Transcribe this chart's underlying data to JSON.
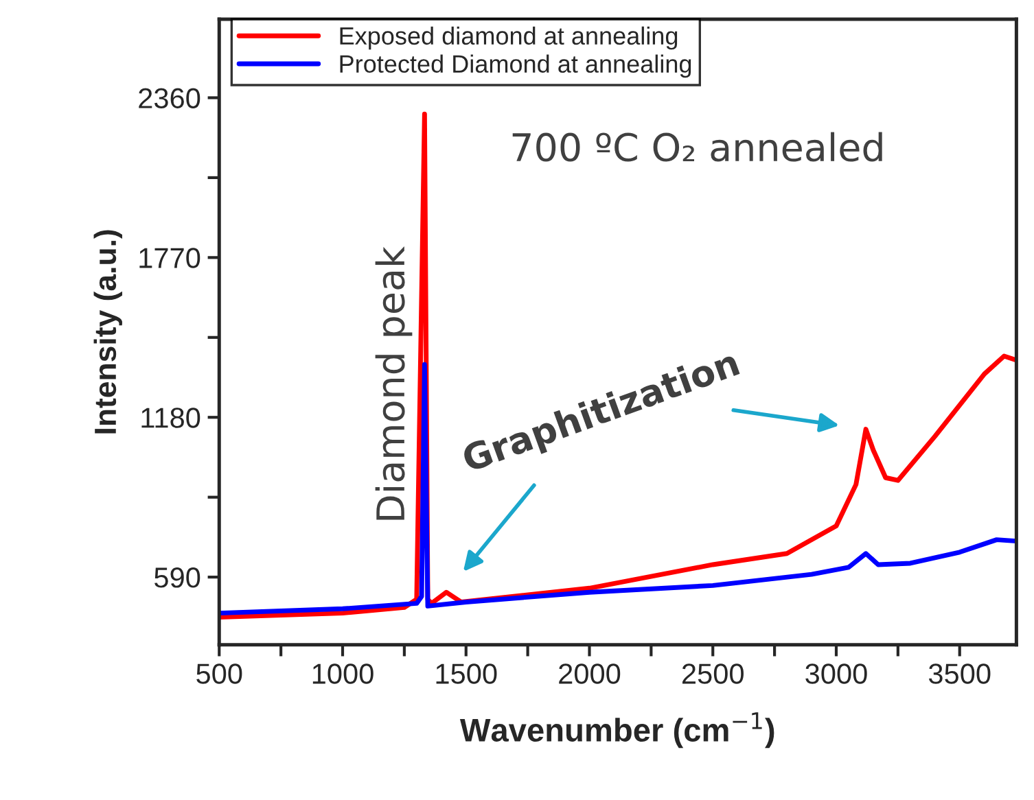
{
  "chart_data": {
    "type": "line",
    "xlabel": "Wavenumber (cm$^{−1}$)",
    "ylabel": "Intensity (a.u.)",
    "series": [
      {
        "name": "Exposed diamond at annealing",
        "color": "#ff0000",
        "x": [
          500,
          1000,
          1250,
          1300,
          1332,
          1345,
          1360,
          1420,
          1480,
          1500,
          2000,
          2500,
          2800,
          3000,
          3080,
          3120,
          3150,
          3200,
          3250,
          3400,
          3600,
          3680,
          3730
        ],
        "values": [
          442,
          457,
          478,
          508,
          2300,
          508,
          493,
          534,
          498,
          500,
          549,
          636,
          677,
          779,
          932,
          1136,
          1059,
          957,
          947,
          1110,
          1340,
          1406,
          1391
        ]
      },
      {
        "name": "Protected Diamond at annealing",
        "color": "#0000ff",
        "x": [
          500,
          1000,
          1300,
          1320,
          1332,
          1345,
          1500,
          2000,
          2500,
          2900,
          3050,
          3120,
          3170,
          3300,
          3500,
          3650,
          3730
        ],
        "values": [
          457,
          473,
          493,
          519,
          1375,
          483,
          498,
          534,
          559,
          600,
          626,
          677,
          636,
          641,
          682,
          728,
          723
        ]
      }
    ],
    "xlim": [
      500,
      3730
    ],
    "xticks": [
      500,
      {
        "value": 750,
        "label": null
      },
      1000,
      {
        "value": 1250,
        "label": null
      },
      1500,
      {
        "value": 1750,
        "label": null
      },
      2000,
      {
        "value": 2250,
        "label": null
      },
      2500,
      {
        "value": 2750,
        "label": null
      },
      3000,
      {
        "value": 3250,
        "label": null
      },
      3500
    ],
    "ylim": [
      340,
      2650
    ],
    "yticks": [
      590,
      {
        "value": 885,
        "label": null
      },
      1180,
      {
        "value": 1475,
        "label": null
      },
      1770,
      {
        "value": 2065,
        "label": null
      },
      2360
    ],
    "annotations": [
      {
        "text": "Diamond peak",
        "x": 1332,
        "y": 1300
      },
      "700 ºC O₂ annealed",
      "Graphitization"
    ],
    "legend": "top left",
    "grid": false,
    "marker": "none",
    "line_style": "solid"
  }
}
